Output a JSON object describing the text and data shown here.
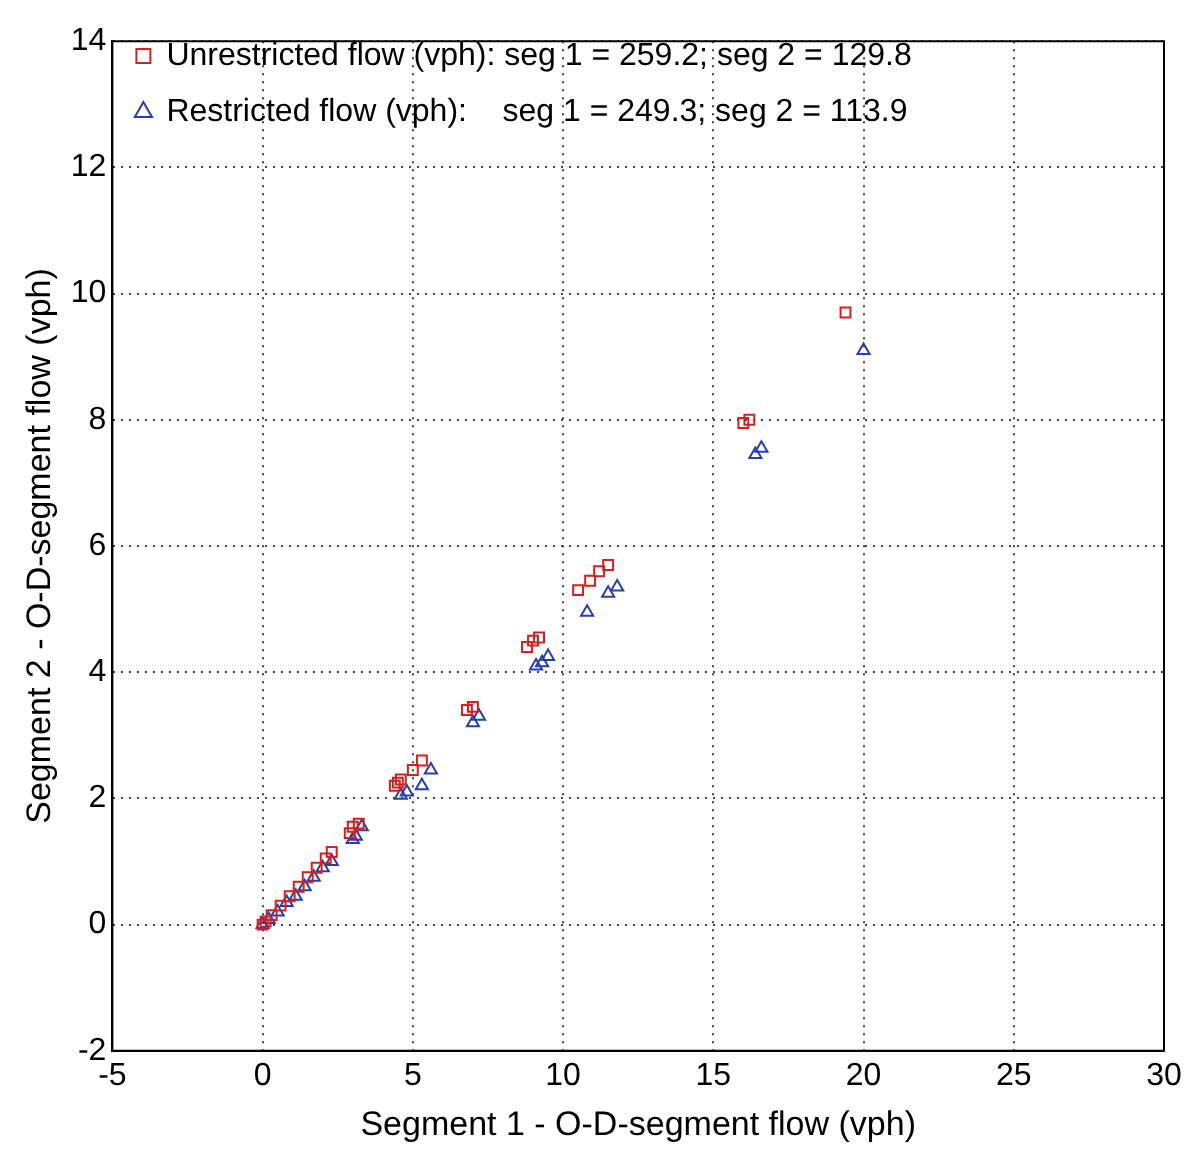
{
  "chart_data": {
    "type": "scatter",
    "xlabel": "Segment 1 - O-D-segment flow (vph)",
    "ylabel": "Segment 2 - O-D-segment flow (vph)",
    "xlim": [
      -5,
      30
    ],
    "ylim": [
      -2,
      14
    ],
    "xticks": [
      -5,
      0,
      5,
      10,
      15,
      20,
      25,
      30
    ],
    "yticks": [
      -2,
      0,
      2,
      4,
      6,
      8,
      10,
      12,
      14
    ],
    "grid": true,
    "legend": "top left",
    "series": [
      {
        "name": "Unrestricted flow (vph): seg 1 = 259.2; seg 2 = 129.8",
        "color": "#d42020",
        "marker": "square",
        "x": [
          19.4,
          16.0,
          16.2,
          11.5,
          11.2,
          10.9,
          10.5,
          9.2,
          9.0,
          8.8,
          7.0,
          6.8,
          5.3,
          5.0,
          4.6,
          4.5,
          4.4,
          3.2,
          3.0,
          2.9,
          2.3,
          2.1,
          1.8,
          1.5,
          1.2,
          0.9,
          0.6,
          0.3,
          0.1,
          0
        ],
        "values": [
          9.7,
          7.95,
          8.0,
          5.7,
          5.6,
          5.45,
          5.3,
          4.55,
          4.5,
          4.4,
          3.45,
          3.4,
          2.6,
          2.45,
          2.3,
          2.25,
          2.2,
          1.6,
          1.55,
          1.45,
          1.15,
          1.05,
          0.9,
          0.75,
          0.6,
          0.45,
          0.3,
          0.15,
          0.05,
          0
        ]
      },
      {
        "name": "Restricted flow (vph):    seg 1 = 249.3; seg 2 = 113.9",
        "color": "#2a3ea8",
        "marker": "triangle",
        "x": [
          20.0,
          16.6,
          16.4,
          11.8,
          11.5,
          10.8,
          9.5,
          9.3,
          9.1,
          7.2,
          7.0,
          5.6,
          5.3,
          4.8,
          4.6,
          3.3,
          3.1,
          3.0,
          2.3,
          2.0,
          1.7,
          1.4,
          1.1,
          0.8,
          0.5,
          0.2,
          0
        ],
        "values": [
          9.1,
          7.55,
          7.45,
          5.35,
          5.25,
          4.95,
          4.25,
          4.15,
          4.1,
          3.3,
          3.2,
          2.45,
          2.2,
          2.1,
          2.05,
          1.55,
          1.4,
          1.35,
          1.0,
          0.9,
          0.75,
          0.6,
          0.45,
          0.35,
          0.2,
          0.08,
          0
        ]
      }
    ]
  }
}
